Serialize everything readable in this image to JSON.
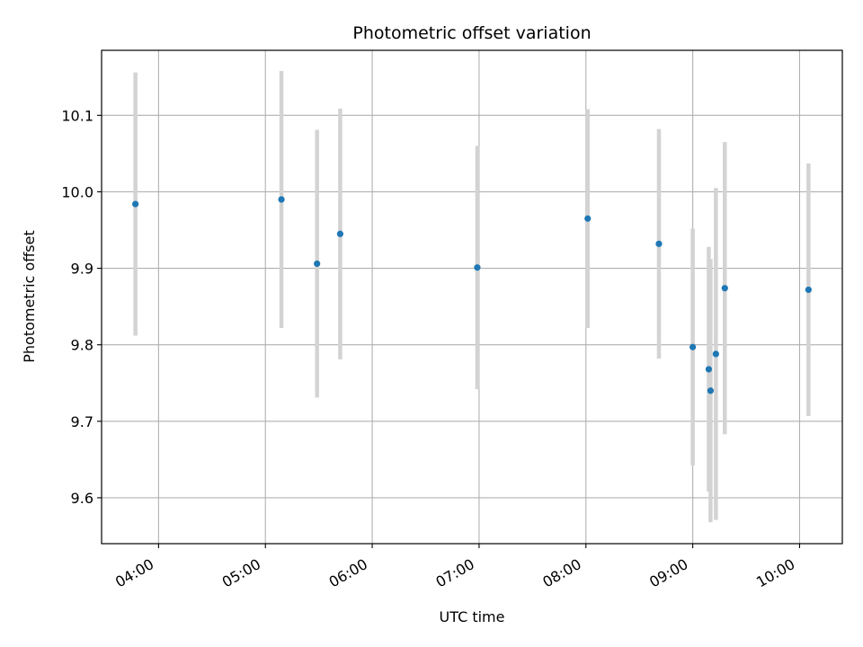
{
  "chart_data": {
    "type": "scatter",
    "title": "Photometric offset variation",
    "xlabel": "UTC time",
    "ylabel": "Photometric offset",
    "x_ticks": [
      "04:00",
      "05:00",
      "06:00",
      "07:00",
      "08:00",
      "09:00",
      "10:00"
    ],
    "y_ticks": [
      "9.6",
      "9.7",
      "9.8",
      "9.9",
      "10.0",
      "10.1"
    ],
    "xlim": [
      "03:28",
      "10:24"
    ],
    "ylim": [
      9.54,
      10.185
    ],
    "grid": true,
    "series": [
      {
        "marker_color": "#1f77b4",
        "errorbar_color": "#d3d3d3",
        "points": [
          {
            "x": "03:47",
            "y": 9.984,
            "err": 0.172
          },
          {
            "x": "05:09",
            "y": 9.99,
            "err": 0.168
          },
          {
            "x": "05:29",
            "y": 9.906,
            "err": 0.175
          },
          {
            "x": "05:42",
            "y": 9.945,
            "err": 0.164
          },
          {
            "x": "06:59",
            "y": 9.901,
            "err": 0.159
          },
          {
            "x": "08:01",
            "y": 9.965,
            "err": 0.143
          },
          {
            "x": "08:41",
            "y": 9.932,
            "err": 0.15
          },
          {
            "x": "09:00",
            "y": 9.797,
            "err": 0.155
          },
          {
            "x": "09:09",
            "y": 9.768,
            "err": 0.16
          },
          {
            "x": "09:10",
            "y": 9.74,
            "err": 0.172
          },
          {
            "x": "09:13",
            "y": 9.788,
            "err": 0.217
          },
          {
            "x": "09:18",
            "y": 9.874,
            "err": 0.191
          },
          {
            "x": "10:05",
            "y": 9.872,
            "err": 0.165
          }
        ]
      }
    ]
  }
}
